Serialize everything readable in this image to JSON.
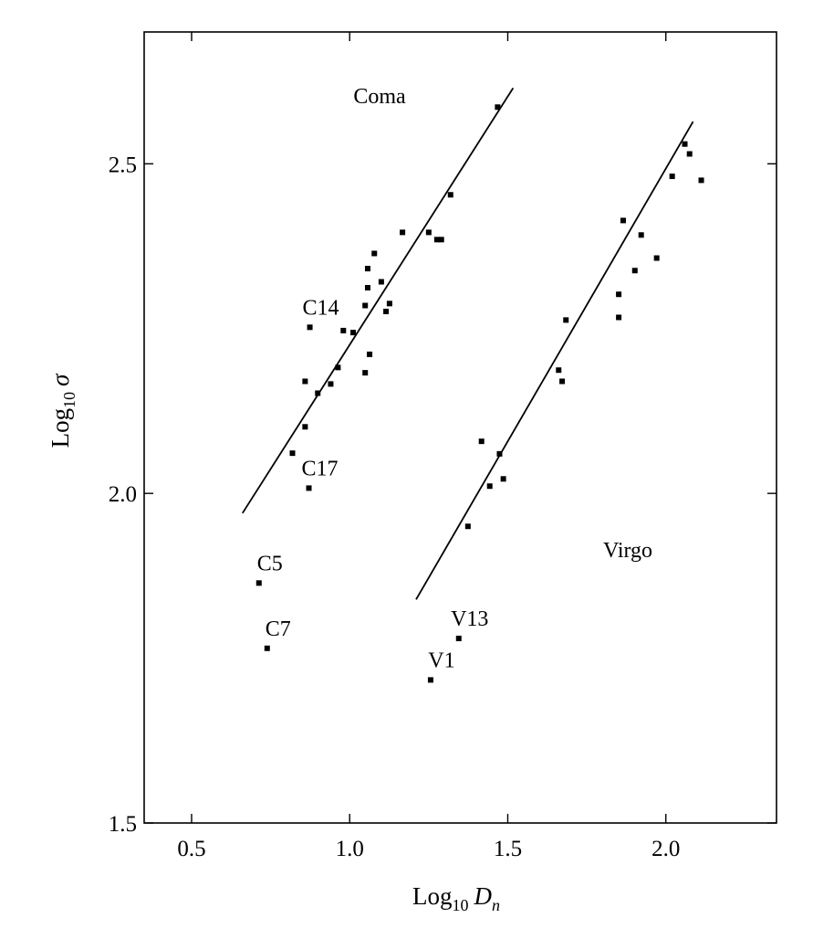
{
  "chart_data": {
    "type": "scatter",
    "xlabel": {
      "base": "Log",
      "subscript": "10",
      "variable": "D",
      "variable_subscript": "n"
    },
    "ylabel": {
      "base": "Log",
      "subscript": "10",
      "variable": "σ"
    },
    "xlim": [
      0.35,
      2.35
    ],
    "ylim": [
      1.5,
      2.7
    ],
    "xticks": [
      0.5,
      {
        "value": 1,
        "label": "1.0"
      },
      1.5,
      {
        "value": 2,
        "label": "2.0"
      }
    ],
    "yticks": [
      1.5,
      {
        "value": 2,
        "label": "2.0"
      },
      2.5
    ],
    "color": "#000000",
    "series": [
      {
        "name": "Coma",
        "x": [
          1.468,
          1.319,
          1.167,
          1.25,
          1.276,
          1.29,
          1.078,
          1.057,
          1.1,
          1.057,
          1.126,
          1.115,
          1.049,
          0.874,
          0.98,
          1.011,
          1.063,
          0.963,
          1.049,
          0.859,
          0.94,
          0.899,
          0.859,
          0.819,
          0.871,
          0.713,
          0.739
        ],
        "values": [
          2.586,
          2.453,
          2.396,
          2.396,
          2.385,
          2.385,
          2.364,
          2.341,
          2.321,
          2.312,
          2.288,
          2.276,
          2.285,
          2.252,
          2.247,
          2.244,
          2.211,
          2.191,
          2.183,
          2.17,
          2.166,
          2.152,
          2.101,
          2.061,
          2.008,
          1.864,
          1.765
        ],
        "labels": [
          null,
          null,
          null,
          null,
          null,
          null,
          null,
          null,
          null,
          null,
          null,
          null,
          null,
          "C14",
          null,
          null,
          null,
          null,
          null,
          null,
          null,
          null,
          null,
          null,
          "C17",
          "C5",
          "C7"
        ],
        "fit": {
          "x": [
            0.661,
            1.517
          ],
          "values": [
            1.97,
            2.615
          ]
        }
      },
      {
        "name": "Virgo",
        "x": [
          2.06,
          2.075,
          2.02,
          2.112,
          1.865,
          1.922,
          1.971,
          1.902,
          1.851,
          1.851,
          1.684,
          1.661,
          1.672,
          1.417,
          1.474,
          1.486,
          1.443,
          1.374,
          1.345,
          1.256
        ],
        "values": [
          2.53,
          2.515,
          2.481,
          2.475,
          2.414,
          2.392,
          2.357,
          2.338,
          2.302,
          2.267,
          2.263,
          2.187,
          2.17,
          2.079,
          2.06,
          2.022,
          2.011,
          1.95,
          1.78,
          1.717
        ],
        "labels": [
          null,
          null,
          null,
          null,
          null,
          null,
          null,
          null,
          null,
          null,
          null,
          null,
          null,
          null,
          null,
          null,
          null,
          null,
          "V13",
          "V1"
        ],
        "fit": {
          "x": [
            1.21,
            2.086
          ],
          "values": [
            1.839,
            2.564
          ]
        }
      }
    ]
  }
}
